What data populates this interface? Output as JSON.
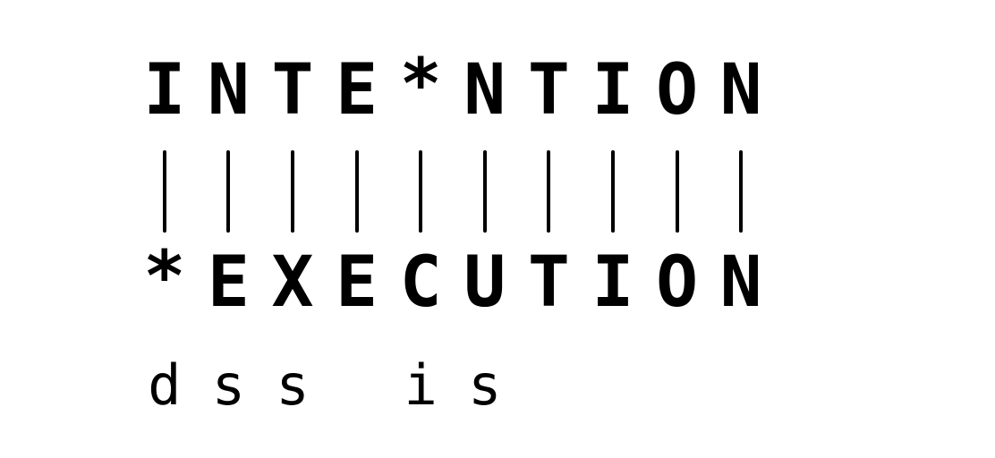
{
  "alignment": {
    "source_chars": [
      "I",
      "N",
      "T",
      "E",
      "*",
      "N",
      "T",
      "I",
      "O",
      "N"
    ],
    "target_chars": [
      "*",
      "E",
      "X",
      "E",
      "C",
      "U",
      "T",
      "I",
      "O",
      "N"
    ],
    "operations": [
      "d",
      "s",
      "s",
      "",
      "i",
      "s",
      "",
      "",
      "",
      ""
    ]
  }
}
